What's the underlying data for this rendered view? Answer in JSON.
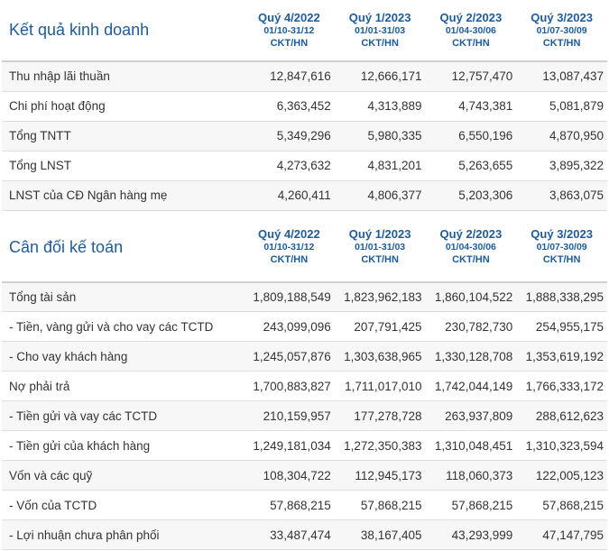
{
  "business": {
    "title": "Kết quả kinh doanh",
    "periods": [
      {
        "quarter": "Quý 4/2022",
        "range": "01/10-31/12",
        "unit": "CKT/HN"
      },
      {
        "quarter": "Quý 1/2023",
        "range": "01/01-31/03",
        "unit": "CKT/HN"
      },
      {
        "quarter": "Quý 2/2023",
        "range": "01/04-30/06",
        "unit": "CKT/HN"
      },
      {
        "quarter": "Quý 3/2023",
        "range": "01/07-30/09",
        "unit": "CKT/HN"
      }
    ],
    "rows": [
      {
        "label": "Thu nhập lãi thuần",
        "values": [
          "12,847,616",
          "12,666,171",
          "12,757,470",
          "13,087,437"
        ]
      },
      {
        "label": "Chi phí hoạt động",
        "values": [
          "6,363,452",
          "4,313,889",
          "4,743,381",
          "5,081,879"
        ]
      },
      {
        "label": "Tổng TNTT",
        "values": [
          "5,349,296",
          "5,980,335",
          "6,550,196",
          "4,870,950"
        ]
      },
      {
        "label": "Tổng LNST",
        "values": [
          "4,273,632",
          "4,831,201",
          "5,263,655",
          "3,895,322"
        ]
      },
      {
        "label": "LNST của CĐ Ngân hàng mẹ",
        "values": [
          "4,260,411",
          "4,806,377",
          "5,203,306",
          "3,863,075"
        ]
      }
    ]
  },
  "balance": {
    "title": "Cân đối kế toán",
    "periods": [
      {
        "quarter": "Quý 4/2022",
        "range": "01/10-31/12",
        "unit": "CKT/HN"
      },
      {
        "quarter": "Quý 1/2023",
        "range": "01/01-31/03",
        "unit": "CKT/HN"
      },
      {
        "quarter": "Quý 2/2023",
        "range": "01/04-30/06",
        "unit": "CKT/HN"
      },
      {
        "quarter": "Quý 3/2023",
        "range": "01/07-30/09",
        "unit": "CKT/HN"
      }
    ],
    "rows": [
      {
        "label": "Tổng tài sản",
        "values": [
          "1,809,188,549",
          "1,823,962,183",
          "1,860,104,522",
          "1,888,338,295"
        ]
      },
      {
        "label": "- Tiền, vàng gửi và cho vay các TCTD",
        "values": [
          "243,099,096",
          "207,791,425",
          "230,782,730",
          "254,955,175"
        ]
      },
      {
        "label": "- Cho vay khách hàng",
        "values": [
          "1,245,057,876",
          "1,303,638,965",
          "1,330,128,708",
          "1,353,619,192"
        ]
      },
      {
        "label": "Nợ phải trả",
        "values": [
          "1,700,883,827",
          "1,711,017,010",
          "1,742,044,149",
          "1,766,333,172"
        ]
      },
      {
        "label": "- Tiền gửi và vay các TCTD",
        "values": [
          "210,159,957",
          "177,278,728",
          "263,937,809",
          "288,612,623"
        ]
      },
      {
        "label": "- Tiền gửi của khách hàng",
        "values": [
          "1,249,181,034",
          "1,272,350,383",
          "1,310,048,451",
          "1,310,323,594"
        ]
      },
      {
        "label": "Vốn và các quỹ",
        "values": [
          "108,304,722",
          "112,945,173",
          "118,060,373",
          "122,005,123"
        ]
      },
      {
        "label": "- Vốn của TCTD",
        "values": [
          "57,868,215",
          "57,868,215",
          "57,868,215",
          "57,868,215"
        ]
      },
      {
        "label": "- Lợi nhuận chưa phân phối",
        "values": [
          "33,487,474",
          "38,167,405",
          "43,293,999",
          "47,147,795"
        ]
      }
    ]
  }
}
